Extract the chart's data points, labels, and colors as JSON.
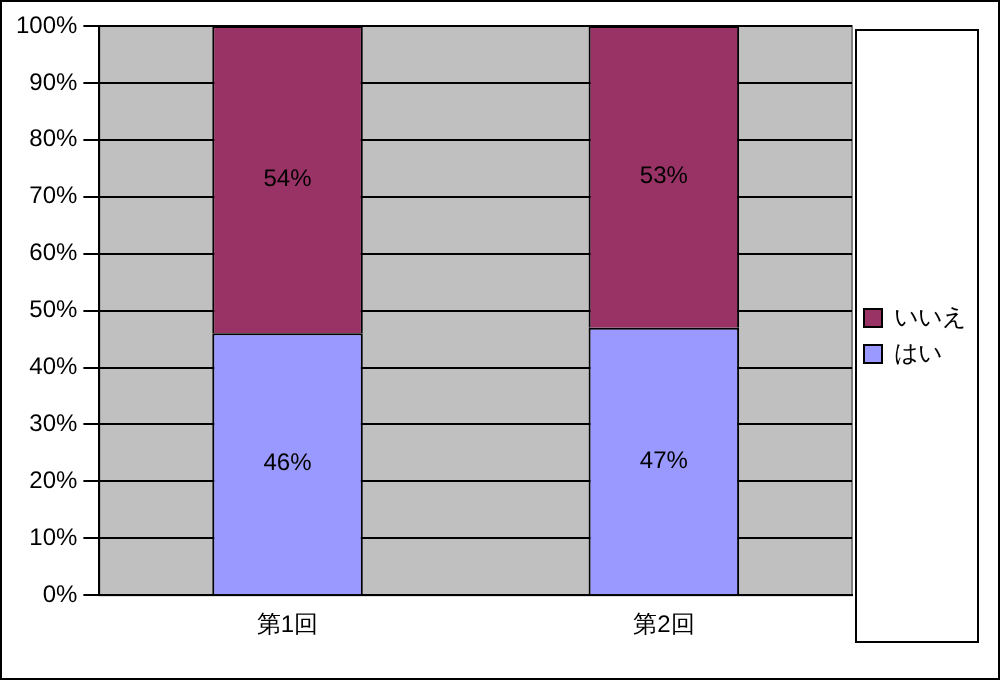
{
  "chart_data": {
    "type": "bar",
    "stacked": true,
    "categories": [
      "第1回",
      "第2回"
    ],
    "series": [
      {
        "name": "はい",
        "color": "#9999ff",
        "values": [
          46,
          47
        ],
        "value_labels": [
          "46%",
          "47%"
        ]
      },
      {
        "name": "いいえ",
        "color": "#993366",
        "values": [
          54,
          53
        ],
        "value_labels": [
          "54%",
          "53%"
        ]
      }
    ],
    "ylim": [
      0,
      100
    ],
    "yticks": [
      {
        "value": 0,
        "label": "0%"
      },
      {
        "value": 10,
        "label": "10%"
      },
      {
        "value": 20,
        "label": "20%"
      },
      {
        "value": 30,
        "label": "30%"
      },
      {
        "value": 40,
        "label": "40%"
      },
      {
        "value": 50,
        "label": "50%"
      },
      {
        "value": 60,
        "label": "60%"
      },
      {
        "value": 70,
        "label": "70%"
      },
      {
        "value": 80,
        "label": "80%"
      },
      {
        "value": 90,
        "label": "90%"
      },
      {
        "value": 100,
        "label": "100%"
      }
    ],
    "grid": "y",
    "legend": "right"
  }
}
